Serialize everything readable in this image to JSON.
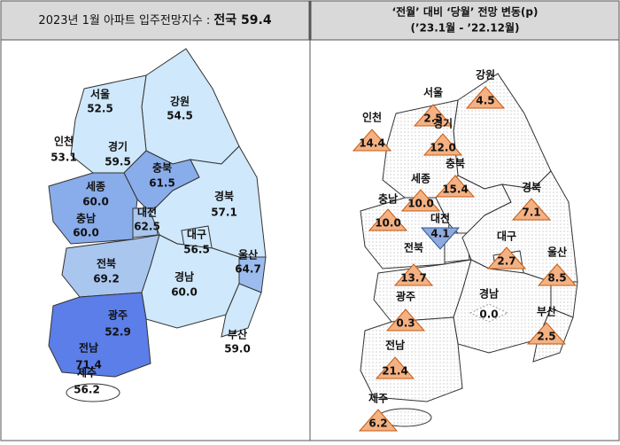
{
  "header": {
    "left": {
      "title": "2023년 1월 아파트 입주전망지수 : ",
      "total": "전국 59.4"
    },
    "right": {
      "title": "‘전월’ 대비 ‘당월’ 전망 변동(p)",
      "subtitle": "(’23.1월  -  ’22.12월)"
    }
  },
  "regions": [
    {
      "name": "서울",
      "index": "52.5",
      "change": "2.5",
      "trend": "up"
    },
    {
      "name": "강원",
      "index": "54.5",
      "change": "4.5",
      "trend": "up"
    },
    {
      "name": "인천",
      "index": "53.1",
      "change": "14.4",
      "trend": "up"
    },
    {
      "name": "경기",
      "index": "59.5",
      "change": "12.0",
      "trend": "up"
    },
    {
      "name": "충북",
      "index": "61.5",
      "change": "15.4",
      "trend": "up"
    },
    {
      "name": "세종",
      "index": "60.0",
      "change": "10.0",
      "trend": "up"
    },
    {
      "name": "충남",
      "index": "60.0",
      "change": "10.0",
      "trend": "up"
    },
    {
      "name": "대전",
      "index": "62.5",
      "change": "4.1",
      "trend": "down"
    },
    {
      "name": "경북",
      "index": "57.1",
      "change": "7.1",
      "trend": "up"
    },
    {
      "name": "대구",
      "index": "56.5",
      "change": "2.7",
      "trend": "up"
    },
    {
      "name": "울산",
      "index": "64.7",
      "change": "8.5",
      "trend": "up"
    },
    {
      "name": "전북",
      "index": "69.2",
      "change": "13.7",
      "trend": "up"
    },
    {
      "name": "경남",
      "index": "60.0",
      "change": "0.0",
      "trend": "flat"
    },
    {
      "name": "광주",
      "index": "52.9",
      "change": "0.3",
      "trend": "up"
    },
    {
      "name": "전남",
      "index": "71.4",
      "change": "21.4",
      "trend": "up"
    },
    {
      "name": "부산",
      "index": "59.0",
      "change": "2.5",
      "trend": "up"
    },
    {
      "name": "제주",
      "index": "56.2",
      "change": "6.2",
      "trend": "up"
    }
  ]
}
